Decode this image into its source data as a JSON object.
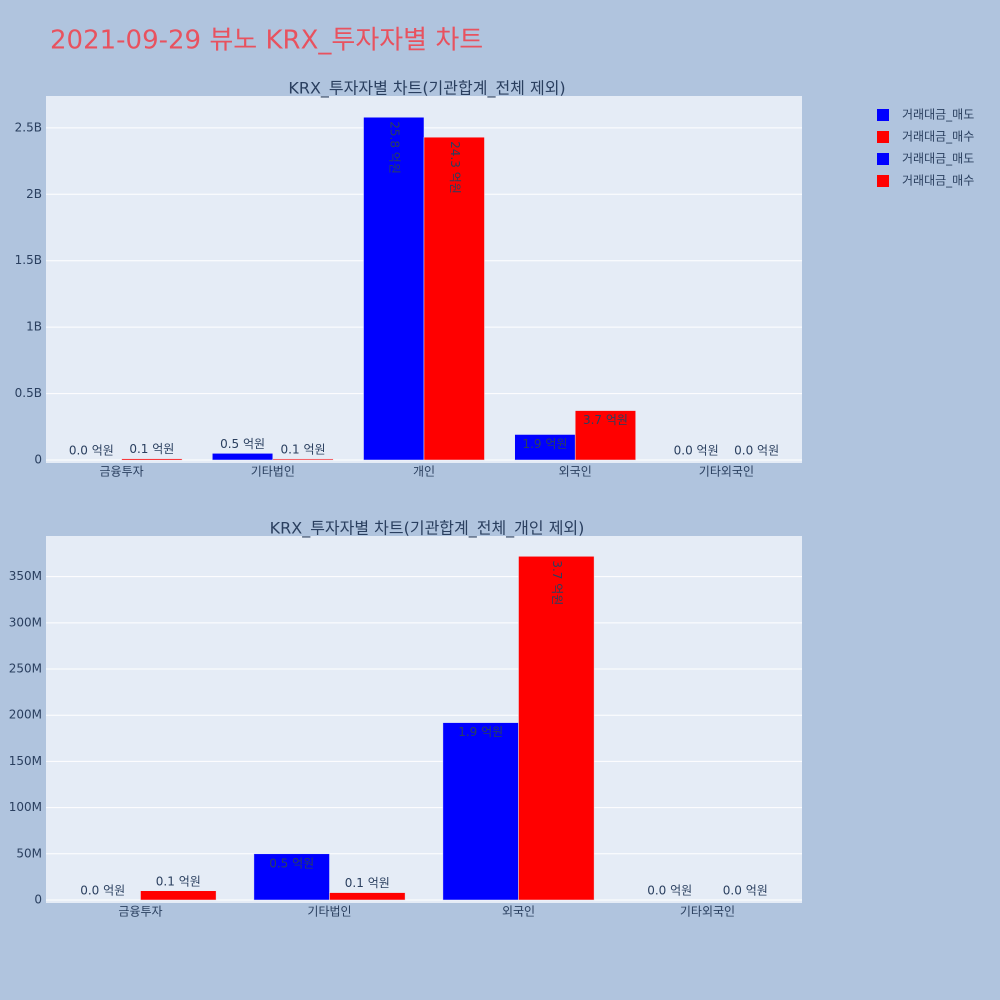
{
  "title": "2021-09-29 뷰노 KRX_투자자별 차트",
  "chart_data": [
    {
      "type": "bar",
      "title": "KRX_투자자별 차트(기관합계_전체 제외)",
      "categories": [
        "금융투자",
        "기타법인",
        "개인",
        "외국인",
        "기타외국인"
      ],
      "series": [
        {
          "name": "거래대금_매도",
          "color": "#0000ff",
          "values": [
            0,
            50000000,
            2580000000,
            192000000,
            0
          ],
          "value_labels": [
            "0.0 억원",
            "0.5 억원",
            "25.8 억원",
            "1.9 억원",
            "0.0 억원"
          ]
        },
        {
          "name": "거래대금_매수",
          "color": "#ff0000",
          "values": [
            10000000,
            8000000,
            2430000000,
            372000000,
            0
          ],
          "value_labels": [
            "0.1 억원",
            "0.1 억원",
            "24.3 억원",
            "3.7 억원",
            "0.0 억원"
          ]
        }
      ],
      "ylim": [
        0,
        2740000000
      ],
      "yticks": [
        0,
        {
          "value": 500000000,
          "label": "0.5B"
        },
        {
          "value": 1000000000,
          "label": "1B"
        },
        {
          "value": 1500000000,
          "label": "1.5B"
        },
        {
          "value": 2000000000,
          "label": "2B"
        },
        {
          "value": 2500000000,
          "label": "2.5B"
        }
      ],
      "grid": true
    },
    {
      "type": "bar",
      "title": "KRX_투자자별 차트(기관합계_전체_개인 제외)",
      "categories": [
        "금융투자",
        "기타법인",
        "외국인",
        "기타외국인"
      ],
      "series": [
        {
          "name": "거래대금_매도",
          "color": "#0000ff",
          "values": [
            0,
            50000000,
            192000000,
            0
          ],
          "value_labels": [
            "0.0 억원",
            "0.5 억원",
            "1.9 억원",
            "0.0 억원"
          ]
        },
        {
          "name": "거래대금_매수",
          "color": "#ff0000",
          "values": [
            10000000,
            8000000,
            372000000,
            0
          ],
          "value_labels": [
            "0.1 억원",
            "0.1 억원",
            "3.7 억원",
            "0.0 억원"
          ]
        }
      ],
      "ylim": [
        0,
        394000000
      ],
      "yticks": [
        0,
        {
          "value": 50000000,
          "label": "50M"
        },
        {
          "value": 100000000,
          "label": "100M"
        },
        {
          "value": 150000000,
          "label": "150M"
        },
        {
          "value": 200000000,
          "label": "200M"
        },
        {
          "value": 250000000,
          "label": "250M"
        },
        {
          "value": 300000000,
          "label": "300M"
        },
        {
          "value": 350000000,
          "label": "350M"
        }
      ],
      "grid": true
    }
  ]
}
